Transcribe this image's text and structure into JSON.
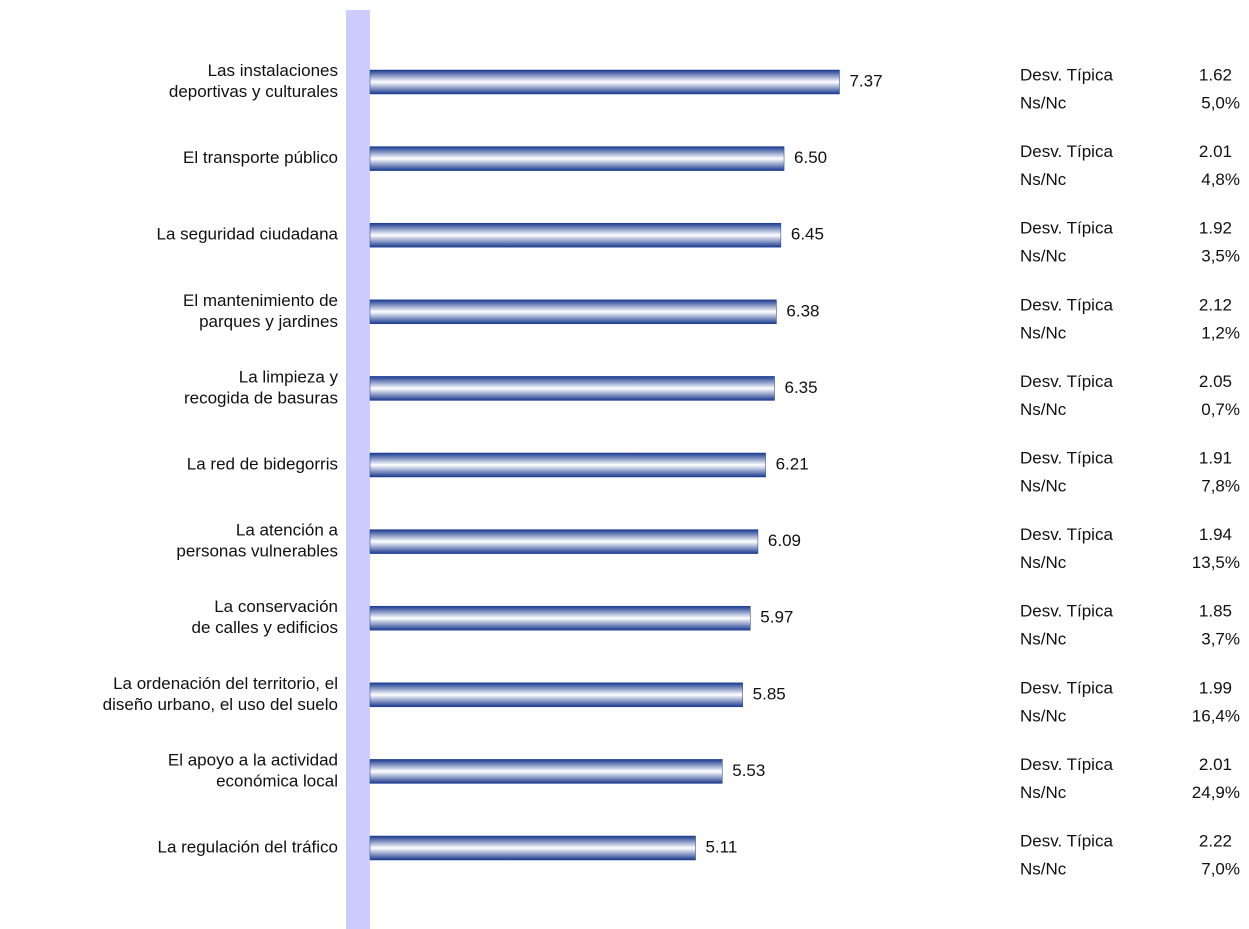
{
  "chart_data": {
    "type": "bar",
    "orientation": "horizontal",
    "categories": [
      [
        "Las instalaciones",
        "deportivas y culturales"
      ],
      [
        "El transporte público"
      ],
      [
        "La seguridad ciudadana"
      ],
      [
        "El mantenimiento de",
        "parques y jardines"
      ],
      [
        "La limpieza y",
        "recogida de basuras"
      ],
      [
        "La red de bidegorris"
      ],
      [
        "La atención a",
        "personas vulnerables"
      ],
      [
        "La conservación",
        "de calles y edificios"
      ],
      [
        "La ordenación del territorio, el",
        "diseño urbano, el uso del suelo"
      ],
      [
        "El apoyo a la actividad",
        "económica local"
      ],
      [
        "La regulación del tráfico"
      ]
    ],
    "values": [
      7.37,
      6.5,
      6.45,
      6.38,
      6.35,
      6.21,
      6.09,
      5.97,
      5.85,
      5.53,
      5.11
    ],
    "value_labels": [
      "7.37",
      "6.50",
      "6.45",
      "6.38",
      "6.35",
      "6.21",
      "6.09",
      "5.97",
      "5.85",
      "5.53",
      "5.11"
    ],
    "color": "#1a3a8f",
    "xlim": [
      0,
      10
    ],
    "std": {
      "label": "Desv. Típica",
      "values": [
        1.62,
        2.01,
        1.92,
        2.12,
        2.05,
        1.91,
        1.94,
        1.85,
        1.99,
        2.01,
        2.22
      ]
    },
    "nsnc": {
      "label": "Ns/Nc",
      "values": [
        5.0,
        4.8,
        3.5,
        1.2,
        0.7,
        7.8,
        13.5,
        3.7,
        16.4,
        24.9,
        7.0
      ],
      "value_labels": [
        "5,0%",
        "4,8%",
        "3,5%",
        "1,2%",
        "0,7%",
        "7,8%",
        "13,5%",
        "3,7%",
        "16,4%",
        "24,9%",
        "7,0%"
      ]
    }
  }
}
